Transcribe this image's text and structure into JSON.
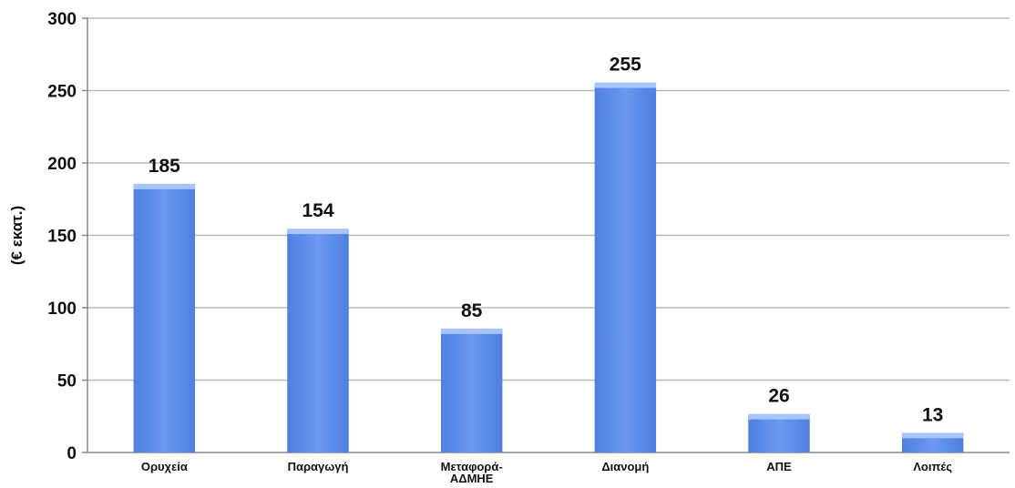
{
  "chart_data": {
    "type": "bar",
    "title": "",
    "xlabel": "",
    "ylabel": "(€ εκατ.)",
    "categories": [
      "Ορυχεία",
      "Παραγωγή",
      "Μεταφορά-ΑΔΜΗΕ",
      "Διανομή",
      "ΑΠΕ",
      "Λοιπές"
    ],
    "category_display": [
      [
        "Ορυχεία"
      ],
      [
        "Παραγωγή"
      ],
      [
        "Μεταφορά-",
        "ΑΔΜΗΕ"
      ],
      [
        "Διανομή"
      ],
      [
        "ΑΠΕ"
      ],
      [
        "Λοιπές"
      ]
    ],
    "values": [
      185,
      154,
      85,
      255,
      26,
      13
    ],
    "data_labels": [
      "185",
      "154",
      "85",
      "255",
      "26",
      "13"
    ],
    "ylim": [
      0,
      300
    ],
    "yticks": [
      0,
      50,
      100,
      150,
      200,
      250,
      300
    ],
    "grid": true,
    "legend": "none",
    "colors": {
      "bar": "#6a98f2",
      "bar_light": "#a9c4fb",
      "bar_dark": "#4f7fe0",
      "grid": "#b8b8b8",
      "axis": "#888888"
    }
  }
}
